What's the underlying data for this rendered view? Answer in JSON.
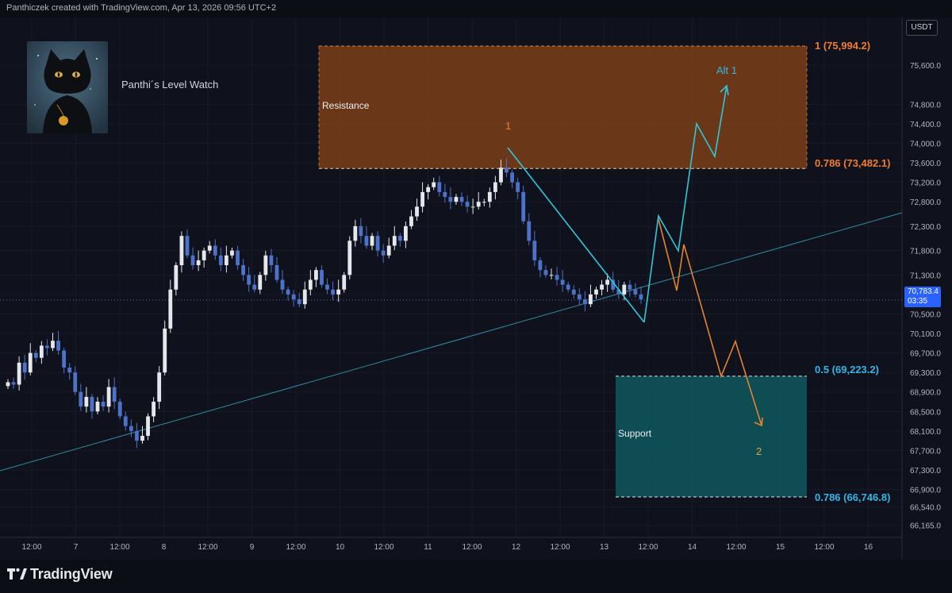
{
  "header": {
    "text": "Panthiczek created with TradingView.com, Apr 13, 2026 09:56 UTC+2"
  },
  "currency": "USDT",
  "watch_title": "Panthi´s Level Watch",
  "footer": {
    "brand": "TradingView"
  },
  "price_badge": {
    "value": "70,783.4",
    "countdown": "03:35"
  },
  "zones": {
    "resistance": {
      "label": "Resistance",
      "color": "#8a4617"
    },
    "support": {
      "label": "Support",
      "color": "#0e5d62"
    }
  },
  "fib_labels": {
    "r1": "1 (75,994.2)",
    "r0786": "0.786 (73,482.1)",
    "s05": "0.5 (69,223.2)",
    "s0786": "0.786 (66,746.8)",
    "resistance_color": "#f07d2e",
    "support_color": "#31b6e8"
  },
  "wave_labels": {
    "w1": "1",
    "w2": "2",
    "alt1": "Alt 1"
  },
  "chart_data": {
    "type": "candlestick",
    "symbol_quote": "USDT",
    "y_ticks": [
      "75,600.0",
      "74,800.0",
      "74,400.0",
      "74,000.0",
      "73,600.0",
      "73,200.0",
      "72,800.0",
      "72,300.0",
      "71,800.0",
      "71,300.0",
      "70,900.0",
      "70,500.0",
      "70,100.0",
      "69,700.0",
      "69,300.0",
      "68,900.0",
      "68,500.0",
      "68,100.0",
      "67,700.0",
      "67,300.0",
      "66,900.0",
      "66,540.0",
      "66,165.0"
    ],
    "x_ticks": [
      "12:00",
      "7",
      "12:00",
      "8",
      "12:00",
      "9",
      "12:00",
      "10",
      "12:00",
      "11",
      "12:00",
      "12",
      "12:00",
      "13",
      "12:00",
      "14",
      "12:00",
      "15",
      "12:00",
      "16"
    ],
    "ylim": [
      66000,
      76500
    ],
    "last_price": 70783.4,
    "candle_colors": {
      "up": "#e6e7ea",
      "down": "#4d72c9"
    },
    "closes": [
      69100,
      69050,
      69500,
      69300,
      69700,
      69600,
      69850,
      69800,
      69950,
      69750,
      69400,
      69300,
      68900,
      68600,
      68800,
      68500,
      68700,
      68600,
      69000,
      68700,
      68400,
      68200,
      68100,
      67900,
      68000,
      68400,
      68700,
      69300,
      70200,
      71000,
      71500,
      72100,
      71700,
      71500,
      71600,
      71800,
      71900,
      71700,
      71500,
      71700,
      71800,
      71500,
      71300,
      71100,
      71000,
      71300,
      71700,
      71500,
      71200,
      71000,
      70900,
      70800,
      70700,
      71000,
      71200,
      71400,
      71100,
      71000,
      70900,
      71000,
      71300,
      72000,
      72300,
      72100,
      71900,
      72100,
      71800,
      71700,
      71900,
      72100,
      72000,
      72300,
      72500,
      72700,
      73000,
      73100,
      73200,
      73000,
      72900,
      72800,
      72900,
      72800,
      72700,
      72700,
      72800,
      72800,
      73000,
      73200,
      73500,
      73400,
      73200,
      73000,
      72400,
      72000,
      71600,
      71400,
      71300,
      71300,
      71200,
      71100,
      71000,
      70900,
      70800,
      70700,
      70900,
      71000,
      71100,
      71200,
      71000,
      70900,
      71100,
      71000,
      70900,
      70800
    ],
    "trendline": {
      "from": {
        "x_label": "7",
        "price": 67200
      },
      "to": {
        "x_label": "14+",
        "price": 72400
      }
    },
    "projections": {
      "cyan": [
        70800,
        70150,
        72300,
        71600,
        74400,
        73700,
        75400
      ],
      "orange": [
        72300,
        71000,
        71800,
        70900,
        69100,
        69700,
        68150
      ]
    },
    "resistance_zone": [
      73482.1,
      75994.2
    ],
    "support_zone": [
      66746.8,
      69223.2
    ]
  }
}
